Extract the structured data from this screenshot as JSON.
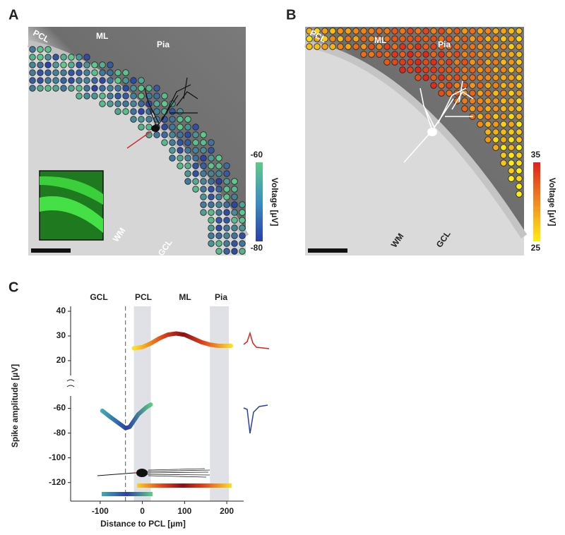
{
  "panel_a": {
    "letter": "A",
    "labels": [
      "PCL",
      "ML",
      "Pia",
      "WM",
      "GCL"
    ],
    "colorbar": {
      "label": "Voltage [µV]",
      "ticks": [
        -60,
        -80
      ]
    }
  },
  "panel_b": {
    "letter": "B",
    "labels": [
      "PCL",
      "ML",
      "Pia",
      "WM",
      "GCL"
    ],
    "colorbar": {
      "label": "Voltage [µV]",
      "ticks": [
        35,
        25
      ]
    }
  },
  "panel_c": {
    "letter": "C",
    "region_labels": [
      "GCL",
      "PCL",
      "ML",
      "Pia"
    ],
    "ylabel": "Spike amplitude [µV]"
  },
  "chart_data": [
    {
      "type": "line",
      "x": [
        -20,
        0,
        20,
        40,
        60,
        80,
        100,
        120,
        140,
        160,
        180,
        200,
        210
      ],
      "values": [
        25,
        25.5,
        27,
        29,
        30.5,
        31,
        30.5,
        29,
        27.5,
        26.5,
        26,
        26,
        26
      ],
      "xlim": [
        -170,
        240
      ],
      "ylim": [
        14,
        42
      ],
      "yticks": [
        20,
        30,
        40
      ],
      "bands": [
        [
          -20,
          20
        ],
        [
          160,
          205
        ]
      ],
      "marker_line": -40
    },
    {
      "type": "line",
      "x": [
        -95,
        -80,
        -60,
        -40,
        -30,
        -20,
        -10,
        0,
        10,
        20
      ],
      "values": [
        -62,
        -66,
        -71,
        -76,
        -75,
        -70,
        -65,
        -62,
        -59,
        -57
      ],
      "xlim": [
        -170,
        240
      ],
      "ylim": [
        -135,
        -50
      ],
      "yticks": [
        -60,
        -80,
        -100,
        -120
      ],
      "xticks": [
        -100,
        0,
        100,
        200
      ],
      "xlabel": "Distance to PCL [µm]"
    }
  ]
}
